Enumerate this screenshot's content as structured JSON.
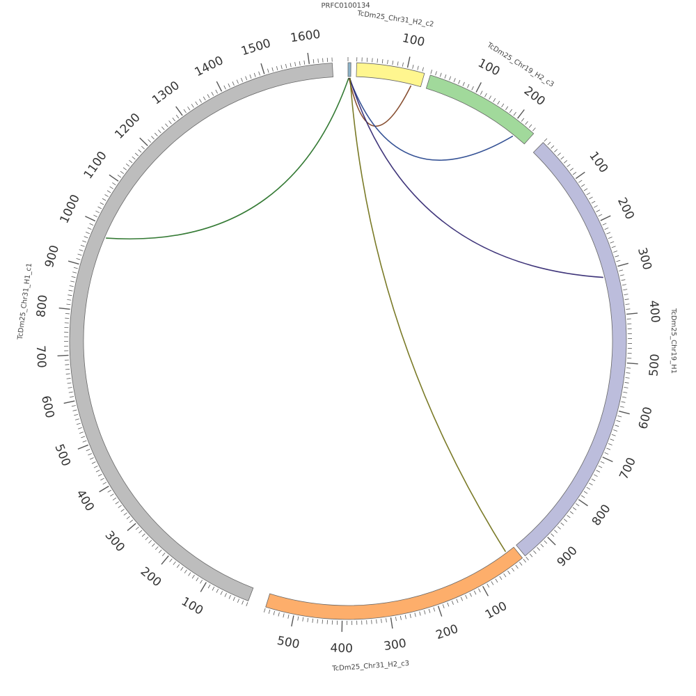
{
  "chart_data": {
    "type": "chord",
    "segments": [
      {
        "id": "PRFC0100134",
        "label": "PRFC0100134",
        "length": 8,
        "color": "#8db3c9",
        "tick_labels": []
      },
      {
        "id": "c2",
        "label": "TcDm25_Chr31_H2_c2",
        "length": 135,
        "color": "#fff68f",
        "tick_labels": [
          "100"
        ]
      },
      {
        "id": "c3",
        "label": "TcDm25_Chr19_H2_c3",
        "length": 245,
        "color": "#a1d99b",
        "tick_labels": [
          "100",
          "200"
        ]
      },
      {
        "id": "h1",
        "label": "TcDm25_Chr19_H1",
        "length": 960,
        "color": "#bcbddc",
        "tick_labels": [
          "100",
          "200",
          "300",
          "400",
          "500",
          "600",
          "700",
          "800",
          "900"
        ]
      },
      {
        "id": "c3b",
        "label": "TcDm25_Chr31_H2_c3",
        "length": 560,
        "color": "#fdae6b",
        "tick_labels": [
          "100",
          "200",
          "300",
          "400",
          "500"
        ]
      },
      {
        "id": "c1",
        "label": "TcDm25_Chr31_H1_c1",
        "length": 1650,
        "color": "#bdbdbd",
        "tick_labels": [
          "100",
          "200",
          "300",
          "400",
          "500",
          "600",
          "700",
          "800",
          "900",
          "1000",
          "1100",
          "1200",
          "1300",
          "1400",
          "1500",
          "1600"
        ]
      }
    ],
    "links": [
      {
        "from": "PRFC0100134",
        "from_pos": 2,
        "to": "c1",
        "to_pos": 975,
        "color": "#1e6b1e"
      },
      {
        "from": "PRFC0100134",
        "from_pos": 3,
        "to": "c2",
        "to_pos": 115,
        "color": "#7a3b1a"
      },
      {
        "from": "PRFC0100134",
        "from_pos": 4,
        "to": "c3",
        "to_pos": 215,
        "color": "#1f3f8a"
      },
      {
        "from": "PRFC0100134",
        "from_pos": 5,
        "to": "h1",
        "to_pos": 315,
        "color": "#2a1f6b"
      },
      {
        "from": "PRFC0100134",
        "from_pos": 6,
        "to": "c3b",
        "to_pos": 20,
        "color": "#6b6b10"
      }
    ]
  }
}
